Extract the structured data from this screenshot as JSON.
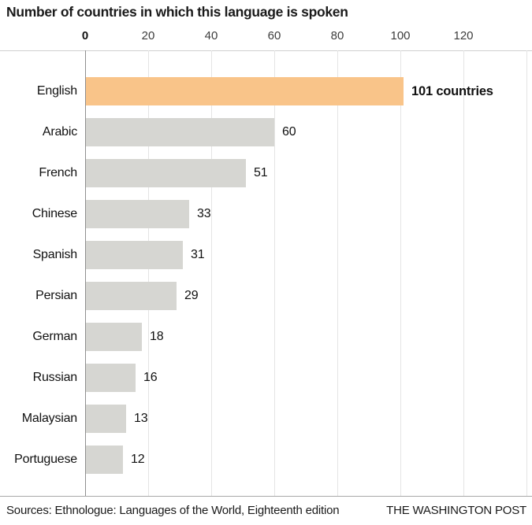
{
  "chart_data": {
    "type": "bar",
    "orientation": "horizontal",
    "title": "Number of countries in which this language is spoken",
    "categories": [
      "English",
      "Arabic",
      "French",
      "Chinese",
      "Spanish",
      "Persian",
      "German",
      "Russian",
      "Malaysian",
      "Portuguese"
    ],
    "values": [
      101,
      60,
      51,
      33,
      31,
      29,
      18,
      16,
      13,
      12
    ],
    "value_labels": [
      "101 countries",
      "60",
      "51",
      "33",
      "31",
      "29",
      "18",
      "16",
      "13",
      "12"
    ],
    "highlight_index": 0,
    "axis_ticks": [
      0,
      20,
      40,
      60,
      80,
      100,
      120
    ],
    "gridline_values": [
      20,
      40,
      60,
      80,
      100,
      120,
      140
    ],
    "xlim": [
      0,
      141
    ],
    "grid": true,
    "legend": "none",
    "colors": {
      "bar": "#d6d6d2",
      "highlight": "#f9c489",
      "gridline": "#e4e4e4",
      "axis": "#8f8f8f",
      "top_rule": "#cfcfcf",
      "bottom_rule": "#a8a8a8"
    }
  },
  "footer": {
    "sources": "Sources: Ethnologue: Languages of the World, Eighteenth edition",
    "credit": "THE WASHINGTON POST"
  }
}
